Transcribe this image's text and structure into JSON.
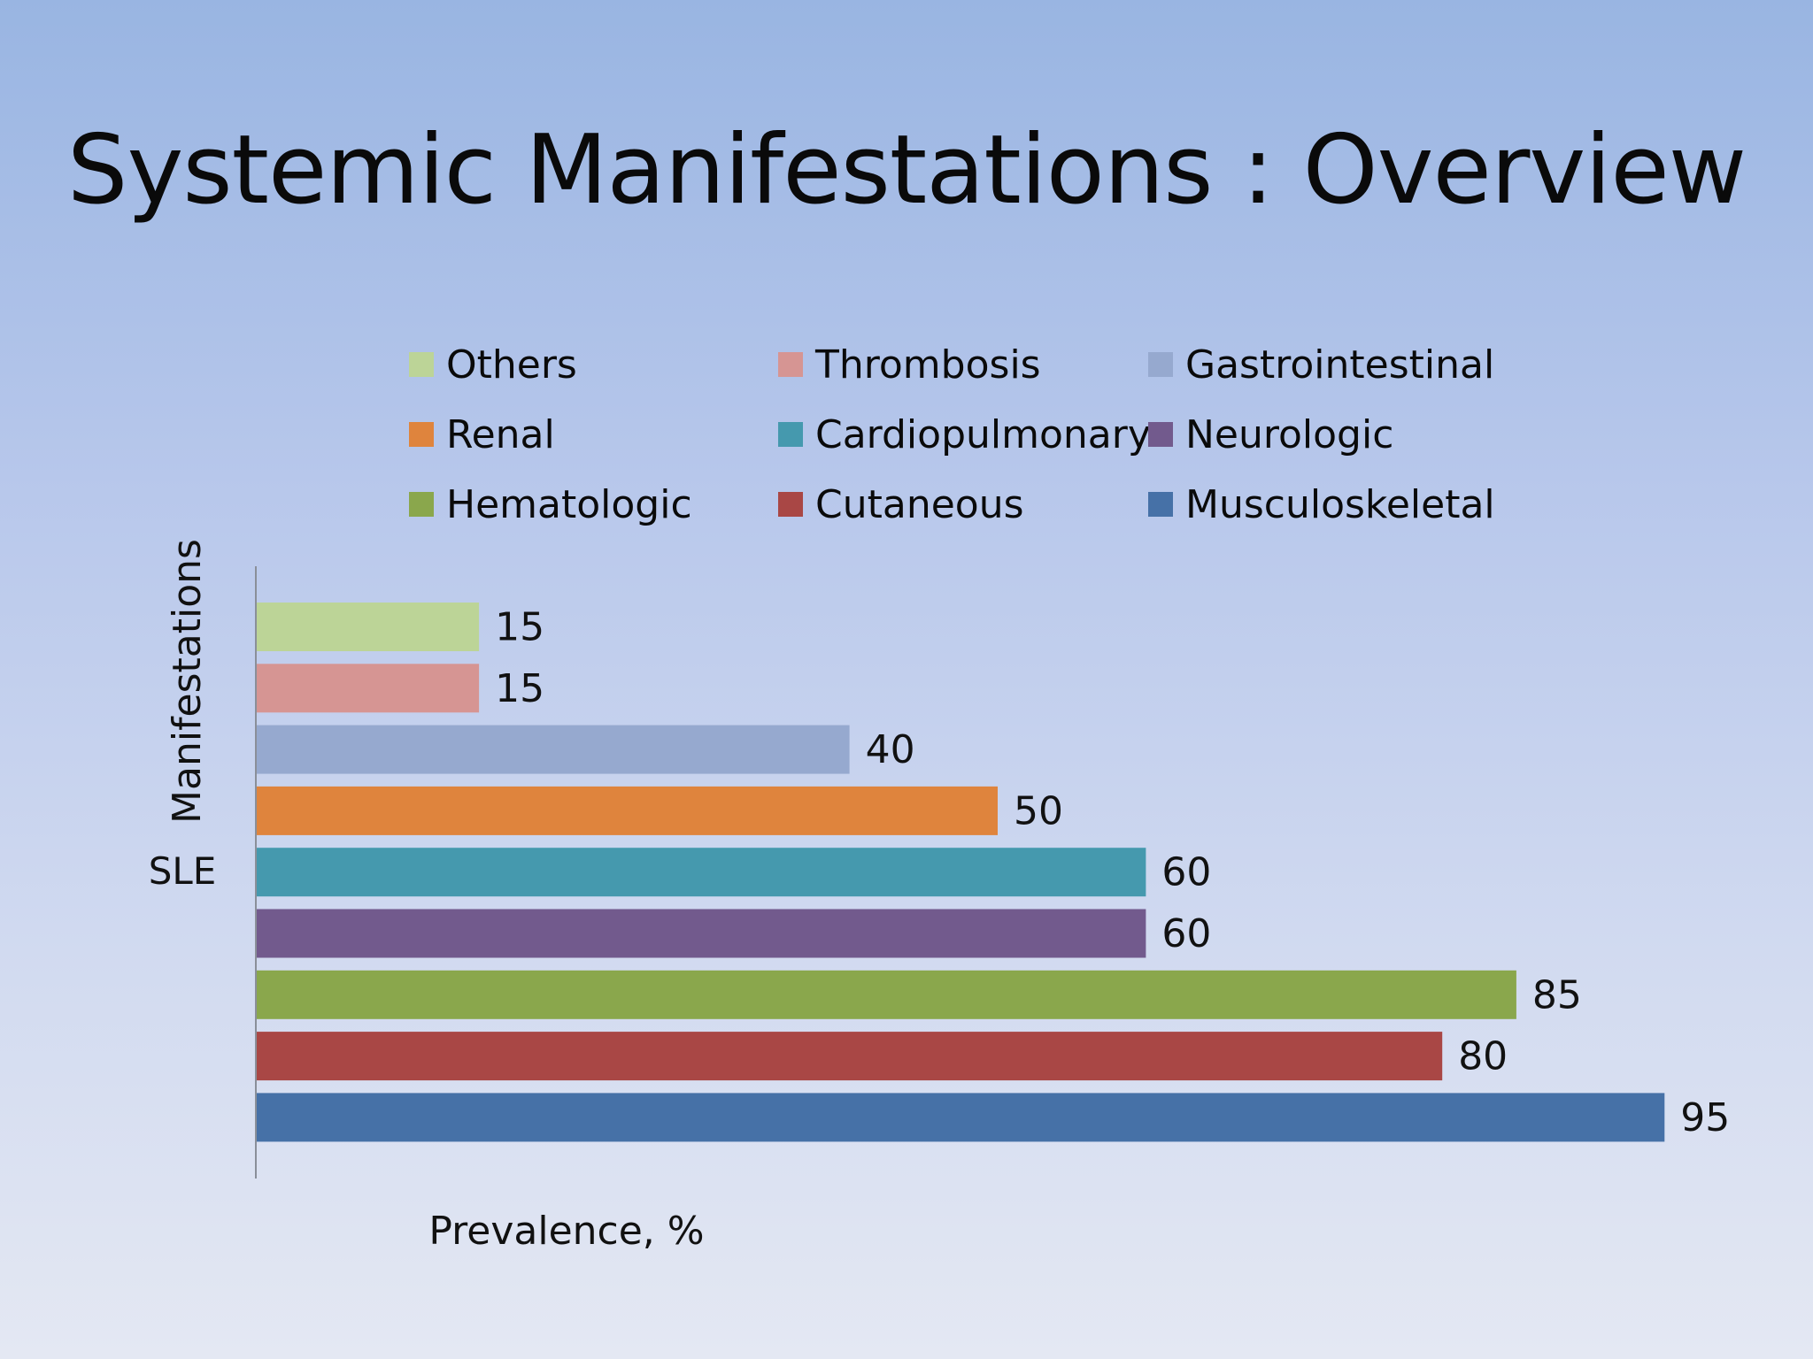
{
  "slide": {
    "title": "Systemic Manifestations : Overview"
  },
  "chart_data": {
    "type": "bar",
    "orientation": "horizontal",
    "title": "Systemic Manifestations : Overview",
    "xlabel": "Prevalence, %",
    "ylabel": "Manifestations",
    "categories": [
      "SLE"
    ],
    "xlim": [
      0,
      100
    ],
    "grid": false,
    "legend_position": "top",
    "series": [
      {
        "name": "Others",
        "values": [
          15
        ],
        "color": "#bcd497"
      },
      {
        "name": "Thrombosis",
        "values": [
          15
        ],
        "color": "#d69593"
      },
      {
        "name": "Gastrointestinal",
        "values": [
          40
        ],
        "color": "#96a9cf"
      },
      {
        "name": "Renal",
        "values": [
          50
        ],
        "color": "#df843d"
      },
      {
        "name": "Cardiopulmonary",
        "values": [
          60
        ],
        "color": "#4599ae"
      },
      {
        "name": "Neurologic",
        "values": [
          60
        ],
        "color": "#725a8d"
      },
      {
        "name": "Hematologic",
        "values": [
          85
        ],
        "color": "#8aa74c"
      },
      {
        "name": "Cutaneous",
        "values": [
          80
        ],
        "color": "#a94745"
      },
      {
        "name": "Musculoskeletal",
        "values": [
          95
        ],
        "color": "#4671a7"
      }
    ],
    "legend_order": [
      "Others",
      "Thrombosis",
      "Gastrointestinal",
      "Renal",
      "Cardiopulmonary",
      "Neurologic",
      "Hematologic",
      "Cutaneous",
      "Musculoskeletal"
    ]
  }
}
